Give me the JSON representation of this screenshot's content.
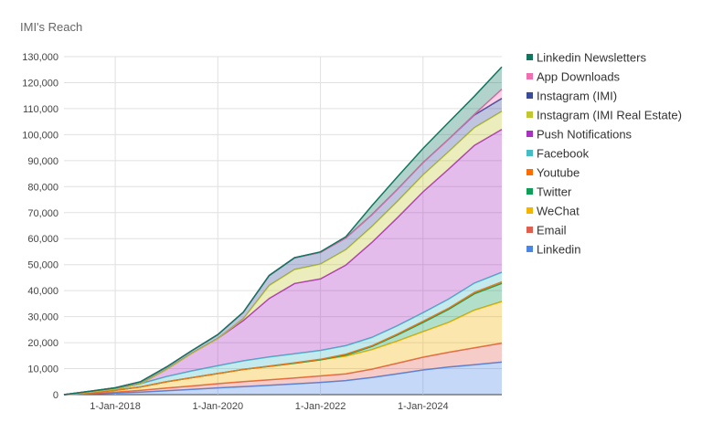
{
  "chart_data": {
    "type": "area",
    "stacked": true,
    "title": "IMI's Reach",
    "xlabel": "",
    "ylabel": "",
    "ylim": [
      0,
      130000
    ],
    "y_ticks": [
      0,
      10000,
      20000,
      30000,
      40000,
      50000,
      60000,
      70000,
      80000,
      90000,
      100000,
      110000,
      120000,
      130000
    ],
    "y_tick_labels": [
      "0",
      "10,000",
      "20,000",
      "30,000",
      "40,000",
      "50,000",
      "60,000",
      "70,000",
      "80,000",
      "90,000",
      "100,000",
      "110,000",
      "120,000",
      "130,000"
    ],
    "x_ticks": [
      "2018-01-01",
      "2020-01-01",
      "2022-01-01",
      "2024-01-01"
    ],
    "x_tick_labels": [
      "1-Jan-2018",
      "1-Jan-2020",
      "1-Jan-2022",
      "1-Jan-2024"
    ],
    "xlim": [
      "2017-01-01",
      "2025-07-15"
    ],
    "grid": true,
    "legend_position": "right",
    "x": [
      "2017-01-01",
      "2017-07-01",
      "2018-01-01",
      "2018-07-01",
      "2019-01-01",
      "2019-07-01",
      "2020-01-01",
      "2020-07-01",
      "2021-01-01",
      "2021-07-01",
      "2022-01-01",
      "2022-07-01",
      "2023-01-01",
      "2023-07-01",
      "2024-01-01",
      "2024-07-01",
      "2025-01-01",
      "2025-07-15"
    ],
    "series": [
      {
        "name": "Linkedin",
        "color": "#4a86e8",
        "values": [
          0,
          300,
          600,
          1000,
          1500,
          2000,
          2600,
          3100,
          3600,
          4100,
          4700,
          5400,
          6600,
          8000,
          9500,
          10600,
          11500,
          12500
        ]
      },
      {
        "name": "Email",
        "color": "#e06050",
        "values": [
          0,
          150,
          350,
          700,
          1050,
          1350,
          1600,
          1900,
          2100,
          2300,
          2500,
          2600,
          3200,
          4100,
          4900,
          5700,
          6500,
          7300
        ]
      },
      {
        "name": "WeChat",
        "color": "#f4b400",
        "values": [
          0,
          300,
          700,
          1300,
          2400,
          3200,
          3900,
          4700,
          5200,
          5700,
          6200,
          6800,
          7500,
          8500,
          9800,
          11500,
          14500,
          16000
        ]
      },
      {
        "name": "Twitter",
        "color": "#0f9d58",
        "values": [
          0,
          0,
          0,
          0,
          0,
          0,
          0,
          0,
          0,
          0,
          0,
          500,
          1200,
          2300,
          3600,
          5000,
          6300,
          7000
        ]
      },
      {
        "name": "Youtube",
        "color": "#ff6d00",
        "values": [
          0,
          0,
          0,
          0,
          0,
          0,
          0,
          0,
          100,
          150,
          200,
          250,
          300,
          350,
          400,
          450,
          500,
          550
        ]
      },
      {
        "name": "Facebook",
        "color": "#46bdc6",
        "values": [
          0,
          200,
          500,
          1200,
          2000,
          2600,
          3000,
          3300,
          3500,
          3500,
          3400,
          3300,
          3200,
          3200,
          3300,
          3500,
          3600,
          3700
        ]
      },
      {
        "name": "Push Notifications",
        "color": "#ab30c4",
        "values": [
          0,
          0,
          0,
          0,
          2800,
          6800,
          10500,
          15500,
          22500,
          27000,
          27500,
          31000,
          36500,
          41500,
          46500,
          50000,
          53000,
          55000
        ]
      },
      {
        "name": "Instagram (IMI Real Estate)",
        "color": "#c0c730",
        "values": [
          0,
          0,
          0,
          0,
          0,
          0,
          0,
          700,
          5000,
          5400,
          5700,
          5900,
          6100,
          6300,
          6500,
          6700,
          6800,
          6900
        ]
      },
      {
        "name": "Instagram (IMI)",
        "color": "#3a4b9c",
        "values": [
          0,
          300,
          500,
          800,
          900,
          1000,
          1500,
          2500,
          3800,
          4500,
          4500,
          4500,
          4500,
          4600,
          4700,
          4800,
          4900,
          5000
        ]
      },
      {
        "name": "App Downloads",
        "color": "#f06fb0",
        "values": [
          0,
          0,
          0,
          0,
          0,
          0,
          0,
          0,
          0,
          0,
          0,
          0,
          0,
          0,
          0,
          0,
          200,
          3500
        ]
      },
      {
        "name": "Linkedin Newsletters",
        "color": "#11765e",
        "values": [
          0,
          0,
          0,
          0,
          0,
          0,
          0,
          0,
          0,
          0,
          200,
          500,
          3500,
          4800,
          5500,
          6500,
          7000,
          8600
        ]
      }
    ],
    "legend_order": [
      "Linkedin Newsletters",
      "App Downloads",
      "Instagram (IMI)",
      "Instagram (IMI Real Estate)",
      "Push Notifications",
      "Facebook",
      "Youtube",
      "Twitter",
      "WeChat",
      "Email",
      "Linkedin"
    ]
  }
}
